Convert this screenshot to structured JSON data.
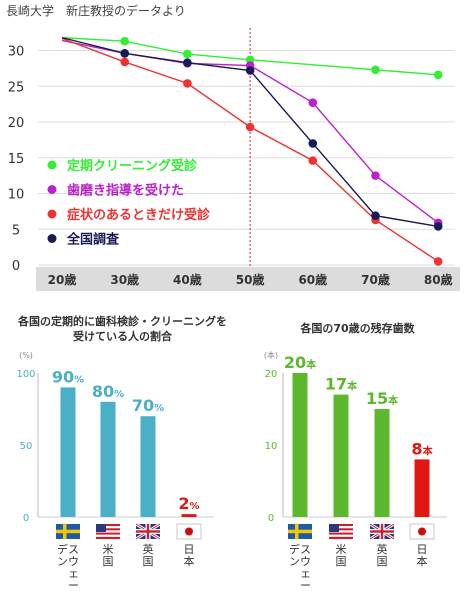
{
  "source": "長崎大学　新庄教授のデータより",
  "chart_data": [
    {
      "type": "line",
      "x": [
        "20歳",
        "30歳",
        "40歳",
        "50歳",
        "60歳",
        "70歳",
        "80歳"
      ],
      "yticks": [
        0,
        5,
        10,
        15,
        20,
        25,
        30
      ],
      "ylim": [
        0,
        33
      ],
      "marker_line_x": "50歳",
      "series": [
        {
          "name": "定期クリーニング受診",
          "color": "#33ee33",
          "values": [
            31.8,
            31.3,
            29.5,
            28.7,
            null,
            27.3,
            26.6
          ]
        },
        {
          "name": "歯磨き指導を受けた",
          "color": "#bb22cc",
          "values": [
            31.4,
            29.6,
            28.2,
            27.9,
            22.7,
            12.5,
            5.9
          ]
        },
        {
          "name": "症状のあるときだけ受診",
          "color": "#ee3333",
          "values": [
            31.7,
            28.4,
            25.4,
            19.3,
            14.6,
            6.3,
            0.5
          ]
        },
        {
          "name": "全国調査",
          "color": "#1a1a55",
          "values": [
            31.8,
            29.6,
            28.3,
            27.2,
            17.0,
            6.9,
            5.4
          ]
        }
      ]
    },
    {
      "type": "bar",
      "title": "各国の定期的に歯科検診・クリーニングを\n受けている人の割合",
      "unit": "(%)",
      "yticks": [
        0,
        50,
        100
      ],
      "ylim": [
        0,
        100
      ],
      "categories": [
        "スウェーデン",
        "米国",
        "英国",
        "日本"
      ],
      "values": [
        90,
        80,
        70,
        2
      ],
      "value_labels": [
        {
          "num": "90",
          "unit": "%"
        },
        {
          "num": "80",
          "unit": "%"
        },
        {
          "num": "70",
          "unit": "%"
        },
        {
          "num": "2",
          "unit": "%"
        }
      ],
      "colors": [
        "#4ab0c8",
        "#4ab0c8",
        "#4ab0c8",
        "#e01810"
      ]
    },
    {
      "type": "bar",
      "title": "各国の70歳の残存歯数",
      "unit": "(本)",
      "yticks": [
        0,
        10,
        20
      ],
      "ylim": [
        0,
        20
      ],
      "categories": [
        "スウェーデン",
        "米国",
        "英国",
        "日本"
      ],
      "values": [
        20,
        17,
        15,
        8
      ],
      "value_labels": [
        {
          "num": "20",
          "unit": "本"
        },
        {
          "num": "17",
          "unit": "本"
        },
        {
          "num": "15",
          "unit": "本"
        },
        {
          "num": "8",
          "unit": "本"
        }
      ],
      "colors": [
        "#5cb82c",
        "#5cb82c",
        "#5cb82c",
        "#e01810"
      ]
    }
  ],
  "flags": [
    "sweden-flag-icon",
    "usa-flag-icon",
    "uk-flag-icon",
    "japan-flag-icon"
  ]
}
